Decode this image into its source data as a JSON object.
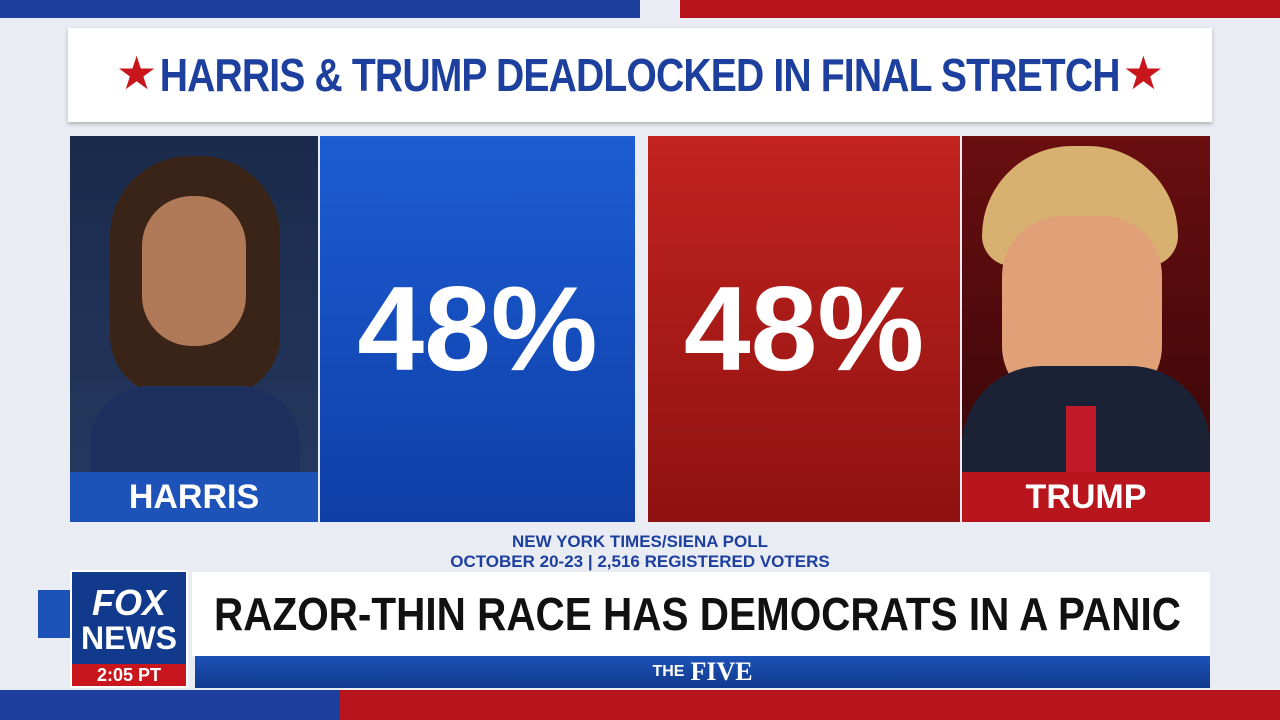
{
  "graphic": {
    "title": "HARRIS & TRUMP DEADLOCKED IN FINAL STRETCH",
    "candidates": [
      {
        "name": "HARRIS",
        "share": "48%"
      },
      {
        "name": "TRUMP",
        "share": "48%"
      }
    ],
    "source": [
      "NEW YORK TIMES/SIENA POLL",
      "OCTOBER 20-23 | 2,516 REGISTERED VOTERS"
    ]
  },
  "lower_third": {
    "headline": "RAZOR-THIN RACE HAS DEMOCRATS IN A PANIC",
    "logo": [
      "FOX",
      "NEWS"
    ],
    "time": "2:05 PT",
    "show": [
      "THE",
      "FIVE"
    ]
  }
}
